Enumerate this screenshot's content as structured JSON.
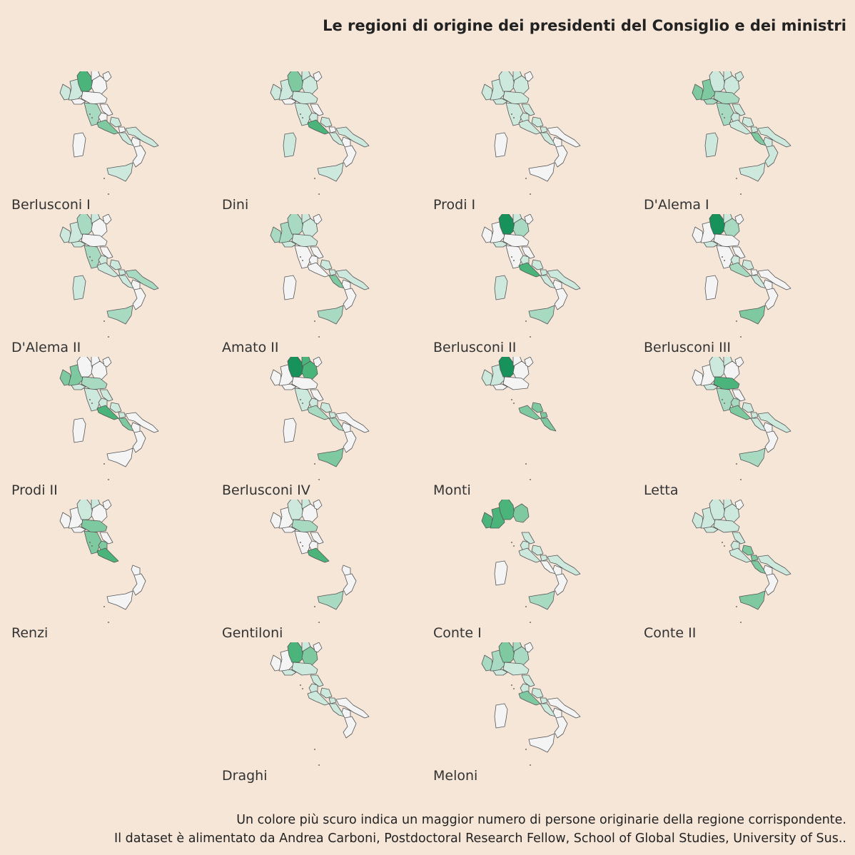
{
  "title": "Le regioni di origine dei presidenti del Consiglio e dei ministri",
  "footer": {
    "line1": "Un colore più scuro indica un maggior numero di persone originarie della regione corrispondente.",
    "line2": "Il dataset è alimentato da Andrea Carboni, Postdoctoral Research Fellow, School of Global Studies, University of Sus.."
  },
  "palette": [
    "#f4f4f4",
    "#cde8dc",
    "#a8d9c1",
    "#7ec9a0",
    "#4bb47a",
    "#16925a"
  ],
  "panels": [
    {
      "label": "Berlusconi I",
      "levels": {
        "aosta": 1,
        "piedmont": 1,
        "lombardy": 4,
        "trentino": 0,
        "veneto": 0,
        "friuli": 0,
        "liguria": 0,
        "emilia": 0,
        "tuscany": 2,
        "umbria": 0,
        "marche": 0,
        "lazio": 3,
        "abruzzo": 1,
        "molise": 0,
        "campania": 1,
        "puglia": 1,
        "basilicata": 0,
        "calabria": 0,
        "sicily": 1,
        "sardinia": 0
      }
    },
    {
      "label": "Dini",
      "levels": {
        "aosta": 1,
        "piedmont": 1,
        "lombardy": 3,
        "trentino": 1,
        "veneto": 1,
        "friuli": 0,
        "liguria": 0,
        "emilia": 1,
        "tuscany": 1,
        "umbria": 1,
        "marche": 0,
        "lazio": 4,
        "abruzzo": 1,
        "molise": 0,
        "campania": 1,
        "puglia": 1,
        "basilicata": 0,
        "calabria": 0,
        "sicily": 1,
        "sardinia": 1
      }
    },
    {
      "label": "Prodi I",
      "levels": {
        "aosta": 1,
        "piedmont": 1,
        "lombardy": 1,
        "trentino": 1,
        "veneto": 1,
        "friuli": 0,
        "liguria": 1,
        "emilia": 1,
        "tuscany": 1,
        "umbria": 1,
        "marche": 1,
        "lazio": 1,
        "abruzzo": 1,
        "molise": 1,
        "campania": 1,
        "puglia": 0,
        "basilicata": 0,
        "calabria": 0,
        "sicily": 0,
        "sardinia": 0
      }
    },
    {
      "label": "D'Alema I",
      "levels": {
        "aosta": 3,
        "piedmont": 3,
        "lombardy": 1,
        "trentino": 1,
        "veneto": 1,
        "friuli": 1,
        "liguria": 2,
        "emilia": 2,
        "tuscany": 2,
        "umbria": 1,
        "marche": 1,
        "lazio": 1,
        "abruzzo": 1,
        "molise": 1,
        "campania": 3,
        "puglia": 1,
        "basilicata": 1,
        "calabria": 1,
        "sicily": 1,
        "sardinia": 1
      }
    },
    {
      "label": "D'Alema II",
      "levels": {
        "aosta": 1,
        "piedmont": 1,
        "lombardy": 2,
        "trentino": 1,
        "veneto": 0,
        "friuli": 0,
        "liguria": 1,
        "emilia": 0,
        "tuscany": 2,
        "umbria": 1,
        "marche": 0,
        "lazio": 1,
        "abruzzo": 1,
        "molise": 1,
        "campania": 1,
        "puglia": 2,
        "basilicata": 0,
        "calabria": 0,
        "sicily": 2,
        "sardinia": 1
      }
    },
    {
      "label": "Amato II",
      "levels": {
        "aosta": 2,
        "piedmont": 2,
        "lombardy": 2,
        "trentino": 1,
        "veneto": 1,
        "friuli": 0,
        "liguria": 1,
        "emilia": 1,
        "tuscany": 0,
        "umbria": 0,
        "marche": 0,
        "lazio": 0,
        "abruzzo": 1,
        "molise": 1,
        "campania": 3,
        "puglia": 1,
        "basilicata": 0,
        "calabria": 0,
        "sicily": 2,
        "sardinia": 0
      }
    },
    {
      "label": "Berlusconi II",
      "levels": {
        "aosta": 0,
        "piedmont": 0,
        "lombardy": 5,
        "trentino": 1,
        "veneto": 2,
        "friuli": 0,
        "liguria": 1,
        "emilia": 0,
        "tuscany": 0,
        "umbria": 1,
        "marche": 0,
        "lazio": 4,
        "abruzzo": 1,
        "molise": 1,
        "campania": 1,
        "puglia": 1,
        "basilicata": 0,
        "calabria": 0,
        "sicily": 2,
        "sardinia": 1
      }
    },
    {
      "label": "Berlusconi III",
      "levels": {
        "aosta": 0,
        "piedmont": 0,
        "lombardy": 5,
        "trentino": 1,
        "veneto": 2,
        "friuli": 0,
        "liguria": 1,
        "emilia": 0,
        "tuscany": 0,
        "umbria": 1,
        "marche": 0,
        "lazio": 2,
        "abruzzo": 1,
        "molise": 0,
        "campania": 1,
        "puglia": 0,
        "basilicata": 0,
        "calabria": 0,
        "sicily": 3,
        "sardinia": 0
      }
    },
    {
      "label": "Prodi II",
      "levels": {
        "aosta": 3,
        "piedmont": 3,
        "lombardy": 0,
        "trentino": 0,
        "veneto": 0,
        "friuli": 0,
        "liguria": 1,
        "emilia": 2,
        "tuscany": 1,
        "umbria": 1,
        "marche": 1,
        "lazio": 4,
        "abruzzo": 1,
        "molise": 1,
        "campania": 3,
        "puglia": 0,
        "basilicata": 0,
        "calabria": 0,
        "sicily": 0,
        "sardinia": 0
      }
    },
    {
      "label": "Berlusconi IV",
      "levels": {
        "aosta": 0,
        "piedmont": 0,
        "lombardy": 5,
        "trentino": 4,
        "veneto": 4,
        "friuli": 0,
        "liguria": 0,
        "emilia": 0,
        "tuscany": 1,
        "umbria": 1,
        "marche": 0,
        "lazio": 2,
        "abruzzo": 1,
        "molise": 1,
        "campania": 2,
        "puglia": 0,
        "basilicata": 0,
        "calabria": 0,
        "sicily": 3,
        "sardinia": 0
      }
    },
    {
      "label": "Monti",
      "levels": {
        "aosta": 1,
        "piedmont": 1,
        "lombardy": 5,
        "trentino": 0,
        "veneto": 0,
        "friuli": 0,
        "liguria": 0,
        "emilia": 0,
        "tuscany": null,
        "umbria": null,
        "marche": null,
        "lazio": 3,
        "abruzzo": 3,
        "molise": 3,
        "campania": 3,
        "puglia": null,
        "basilicata": null,
        "calabria": null,
        "sicily": null,
        "sardinia": null
      }
    },
    {
      "label": "Letta",
      "levels": {
        "aosta": 0,
        "piedmont": 0,
        "lombardy": 1,
        "trentino": 1,
        "veneto": 0,
        "friuli": 0,
        "liguria": 1,
        "emilia": 4,
        "tuscany": 2,
        "umbria": 2,
        "marche": 0,
        "lazio": 3,
        "abruzzo": 1,
        "molise": 1,
        "campania": 1,
        "puglia": 1,
        "basilicata": 0,
        "calabria": 0,
        "sicily": 2,
        "sardinia": null
      }
    },
    {
      "label": "Renzi",
      "levels": {
        "aosta": 0,
        "piedmont": 0,
        "lombardy": 1,
        "trentino": 1,
        "veneto": 0,
        "friuli": 0,
        "liguria": 0,
        "emilia": 3,
        "tuscany": 3,
        "umbria": 3,
        "marche": 0,
        "lazio": 4,
        "abruzzo": null,
        "molise": null,
        "campania": null,
        "puglia": null,
        "basilicata": 0,
        "calabria": 0,
        "sicily": 0,
        "sardinia": null
      }
    },
    {
      "label": "Gentiloni",
      "levels": {
        "aosta": 0,
        "piedmont": 0,
        "lombardy": 1,
        "trentino": 1,
        "veneto": 0,
        "friuli": 0,
        "liguria": 0,
        "emilia": 2,
        "tuscany": 0,
        "umbria": 0,
        "marche": 0,
        "lazio": 4,
        "abruzzo": null,
        "molise": null,
        "campania": null,
        "puglia": null,
        "basilicata": 0,
        "calabria": 0,
        "sicily": 2,
        "sardinia": null
      }
    },
    {
      "label": "Conte I",
      "levels": {
        "aosta": 4,
        "piedmont": 4,
        "lombardy": 4,
        "trentino": null,
        "veneto": 3,
        "friuli": null,
        "liguria": null,
        "emilia": null,
        "tuscany": null,
        "umbria": 1,
        "marche": 1,
        "lazio": 1,
        "abruzzo": 1,
        "molise": 1,
        "campania": 0,
        "puglia": 1,
        "basilicata": 0,
        "calabria": 0,
        "sicily": 2,
        "sardinia": 0
      }
    },
    {
      "label": "Conte II",
      "levels": {
        "aosta": 1,
        "piedmont": 1,
        "lombardy": 1,
        "trentino": 1,
        "veneto": 1,
        "friuli": 0,
        "liguria": 1,
        "emilia": 1,
        "tuscany": null,
        "umbria": 1,
        "marche": 1,
        "lazio": 1,
        "abruzzo": 3,
        "molise": 3,
        "campania": 3,
        "puglia": 1,
        "basilicata": 0,
        "calabria": 0,
        "sicily": 3,
        "sardinia": null
      }
    },
    {
      "label": "Draghi",
      "levels": {
        "aosta": 0,
        "piedmont": 0,
        "lombardy": 4,
        "trentino": 1,
        "veneto": 3,
        "friuli": 0,
        "liguria": 1,
        "emilia": 1,
        "tuscany": null,
        "umbria": 1,
        "marche": 1,
        "lazio": 1,
        "abruzzo": 1,
        "molise": 1,
        "campania": 1,
        "puglia": 0,
        "basilicata": 0,
        "calabria": 0,
        "sicily": null,
        "sardinia": null
      }
    },
    {
      "label": "Meloni",
      "levels": {
        "aosta": 2,
        "piedmont": 2,
        "lombardy": 3,
        "trentino": 2,
        "veneto": 2,
        "friuli": 0,
        "liguria": 1,
        "emilia": 1,
        "tuscany": null,
        "umbria": 1,
        "marche": 1,
        "lazio": 3,
        "abruzzo": 1,
        "molise": 1,
        "campania": 1,
        "puglia": 0,
        "basilicata": 0,
        "calabria": 0,
        "sicily": 0,
        "sardinia": 0
      }
    }
  ]
}
